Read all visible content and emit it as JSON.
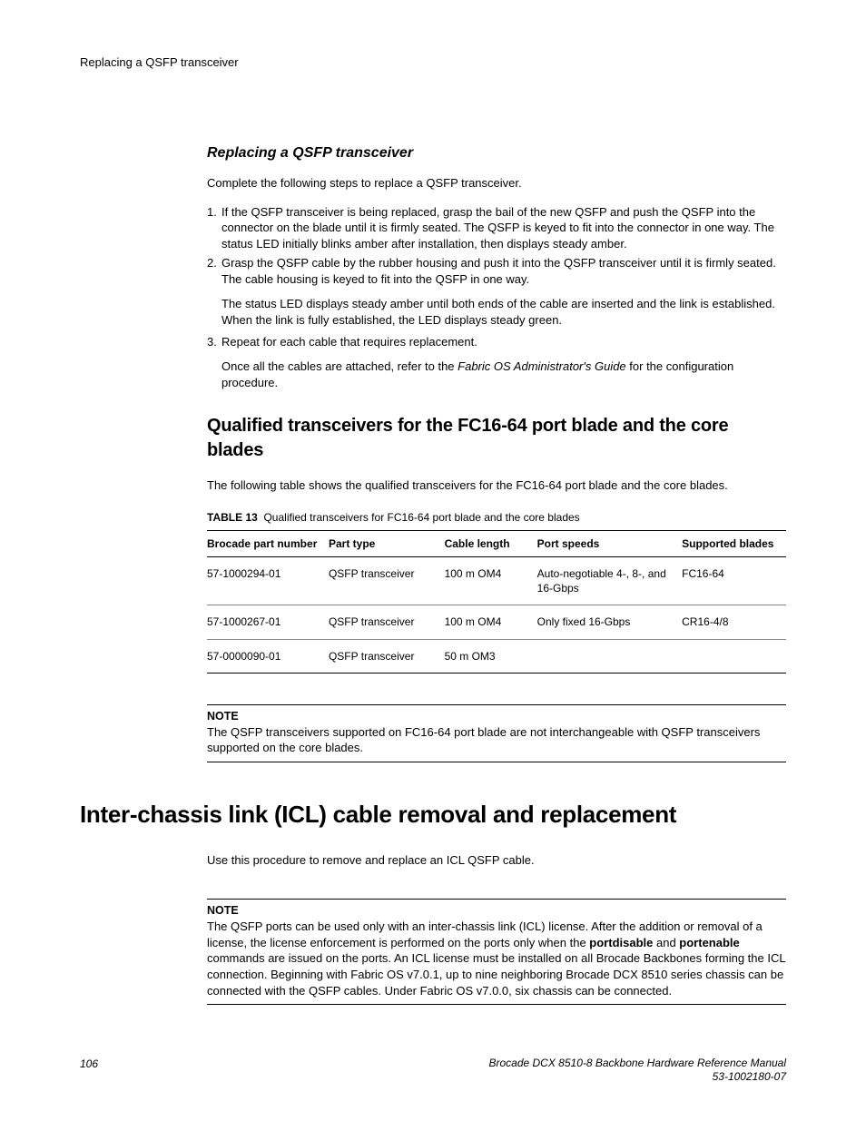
{
  "header": {
    "running": "Replacing a QSFP transceiver"
  },
  "section1": {
    "heading": "Replacing a QSFP transceiver",
    "intro": "Complete the following steps to replace a QSFP transceiver.",
    "steps": [
      {
        "num": "1.",
        "text": "If the QSFP transceiver is being replaced, grasp the bail of the new QSFP and push the QSFP into the connector on the blade until it is firmly seated. The QSFP is keyed to fit into the connector in one way. The status LED initially blinks amber after installation, then displays steady amber."
      },
      {
        "num": "2.",
        "text": "Grasp the QSFP cable by the rubber housing and push it into the QSFP transceiver until it is firmly seated. The cable housing is keyed to fit into the QSFP in one way.",
        "sub": "The status LED displays steady amber until both ends of the cable are inserted and the link is established. When the link is fully established, the LED displays steady green."
      },
      {
        "num": "3.",
        "text": "Repeat for each cable that requires replacement.",
        "sub_pre": "Once all the cables are attached, refer to the ",
        "sub_ital": "Fabric OS Administrator's Guide",
        "sub_post": " for the configuration procedure."
      }
    ]
  },
  "section2": {
    "heading": "Qualified transceivers for the FC16-64 port blade and the core blades",
    "intro": "The following table shows the qualified transceivers for the FC16-64 port blade and the core blades.",
    "table_label": "TABLE 13",
    "table_title": "Qualified transceivers for FC16-64 port blade and the core blades",
    "columns": [
      "Brocade part number",
      "Part type",
      "Cable length",
      "Port speeds",
      "Supported blades"
    ],
    "rows": [
      [
        "57-1000294-01",
        "QSFP transceiver",
        "100 m OM4",
        "Auto-negotiable 4-, 8-, and 16-Gbps",
        "FC16-64"
      ],
      [
        "57-1000267-01",
        "QSFP transceiver",
        "100 m OM4",
        "Only fixed 16-Gbps",
        "CR16-4/8"
      ],
      [
        "57-0000090-01",
        "QSFP transceiver",
        "50 m OM3",
        "",
        ""
      ]
    ],
    "note_head": "NOTE",
    "note_body": "The QSFP transceivers supported on FC16-64 port blade are not interchangeable with QSFP transceivers supported on the core blades."
  },
  "section3": {
    "heading": "Inter-chassis link (ICL) cable removal and replacement",
    "intro": "Use this procedure to remove and replace an ICL QSFP cable.",
    "note_head": "NOTE",
    "note_pre": "The QSFP ports can be used only with an inter-chassis link (ICL) license. After the addition or removal of a license, the license enforcement is performed on the ports only when the ",
    "bold1": "portdisable",
    "note_mid1": " and ",
    "bold2": "portenable",
    "note_post": " commands are issued on the ports. An ICL license must be installed on all Brocade Backbones forming the ICL connection. Beginning with Fabric OS v7.0.1, up to nine neighboring Brocade DCX 8510 series chassis can be connected with the QSFP cables. Under Fabric OS v7.0.0, six chassis can be connected."
  },
  "footer": {
    "page": "106",
    "manual": "Brocade DCX 8510-8 Backbone Hardware Reference Manual",
    "docnum": "53-1002180-07"
  },
  "col_widths": [
    "21%",
    "20%",
    "16%",
    "25%",
    "18%"
  ]
}
